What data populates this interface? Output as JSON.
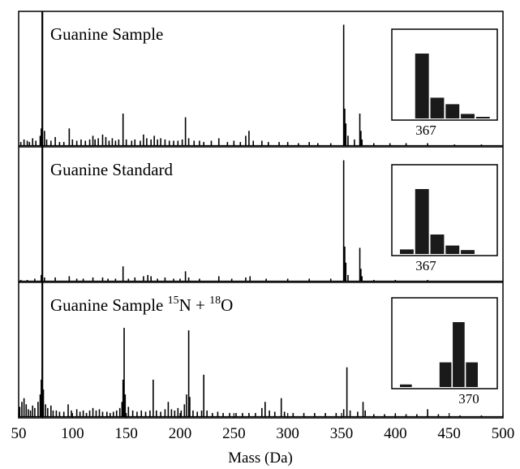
{
  "chart_data": {
    "type": "bar",
    "xlabel": "Mass (Da)",
    "xlim": [
      50,
      500
    ],
    "x_ticks": [
      "50",
      "100",
      "150",
      "200",
      "250",
      "300",
      "350",
      "400",
      "450",
      "500"
    ],
    "colors": {
      "line": "#000000",
      "bars": "#1a1a1a"
    },
    "panels": [
      {
        "title": "Guanine Sample",
        "title_sup": [],
        "peaks": [
          [
            52,
            0.03
          ],
          [
            55,
            0.05
          ],
          [
            58,
            0.04
          ],
          [
            60,
            0.03
          ],
          [
            63,
            0.06
          ],
          [
            66,
            0.04
          ],
          [
            70,
            0.08
          ],
          [
            71,
            0.14
          ],
          [
            72,
            0.22
          ],
          [
            74,
            0.12
          ],
          [
            76,
            0.05
          ],
          [
            80,
            0.04
          ],
          [
            84,
            0.07
          ],
          [
            88,
            0.03
          ],
          [
            92,
            0.03
          ],
          [
            97,
            0.14
          ],
          [
            100,
            0.05
          ],
          [
            104,
            0.04
          ],
          [
            108,
            0.05
          ],
          [
            112,
            0.04
          ],
          [
            116,
            0.05
          ],
          [
            119,
            0.08
          ],
          [
            121,
            0.05
          ],
          [
            124,
            0.06
          ],
          [
            128,
            0.09
          ],
          [
            131,
            0.07
          ],
          [
            134,
            0.04
          ],
          [
            137,
            0.06
          ],
          [
            140,
            0.04
          ],
          [
            143,
            0.05
          ],
          [
            147,
            0.26
          ],
          [
            150,
            0.05
          ],
          [
            155,
            0.04
          ],
          [
            158,
            0.05
          ],
          [
            163,
            0.04
          ],
          [
            166,
            0.09
          ],
          [
            169,
            0.06
          ],
          [
            173,
            0.05
          ],
          [
            176,
            0.08
          ],
          [
            179,
            0.05
          ],
          [
            182,
            0.06
          ],
          [
            186,
            0.05
          ],
          [
            190,
            0.04
          ],
          [
            194,
            0.04
          ],
          [
            198,
            0.04
          ],
          [
            202,
            0.05
          ],
          [
            205,
            0.23
          ],
          [
            208,
            0.06
          ],
          [
            213,
            0.04
          ],
          [
            218,
            0.04
          ],
          [
            222,
            0.03
          ],
          [
            229,
            0.04
          ],
          [
            236,
            0.06
          ],
          [
            244,
            0.03
          ],
          [
            250,
            0.04
          ],
          [
            256,
            0.03
          ],
          [
            261,
            0.08
          ],
          [
            264,
            0.12
          ],
          [
            268,
            0.04
          ],
          [
            276,
            0.04
          ],
          [
            282,
            0.03
          ],
          [
            292,
            0.03
          ],
          [
            300,
            0.03
          ],
          [
            310,
            0.02
          ],
          [
            320,
            0.03
          ],
          [
            328,
            0.02
          ],
          [
            340,
            0.02
          ],
          [
            352,
            0.98
          ],
          [
            353,
            0.3
          ],
          [
            354,
            0.18
          ],
          [
            356,
            0.08
          ],
          [
            362,
            0.05
          ],
          [
            367,
            0.26
          ],
          [
            368,
            0.12
          ],
          [
            369,
            0.05
          ],
          [
            380,
            0.02
          ],
          [
            395,
            0.02
          ],
          [
            410,
            0.02
          ],
          [
            430,
            0.02
          ],
          [
            455,
            0.01
          ],
          [
            480,
            0.01
          ]
        ],
        "inset": {
          "label": "367",
          "bars": [
            {
              "slot": 0,
              "value": 0.0
            },
            {
              "slot": 1,
              "value": 1.0
            },
            {
              "slot": 2,
              "value": 0.32
            },
            {
              "slot": 3,
              "value": 0.22
            },
            {
              "slot": 4,
              "value": 0.07
            },
            {
              "slot": 5,
              "value": 0.02
            }
          ]
        }
      },
      {
        "title": "Guanine Standard",
        "title_sup": [],
        "peaks": [
          [
            52,
            0.01
          ],
          [
            58,
            0.01
          ],
          [
            65,
            0.02
          ],
          [
            71,
            0.05
          ],
          [
            72,
            0.07
          ],
          [
            74,
            0.03
          ],
          [
            84,
            0.03
          ],
          [
            97,
            0.04
          ],
          [
            104,
            0.02
          ],
          [
            110,
            0.02
          ],
          [
            119,
            0.03
          ],
          [
            128,
            0.03
          ],
          [
            133,
            0.02
          ],
          [
            140,
            0.02
          ],
          [
            147,
            0.12
          ],
          [
            152,
            0.02
          ],
          [
            158,
            0.03
          ],
          [
            166,
            0.04
          ],
          [
            170,
            0.05
          ],
          [
            173,
            0.04
          ],
          [
            179,
            0.02
          ],
          [
            186,
            0.03
          ],
          [
            194,
            0.02
          ],
          [
            200,
            0.02
          ],
          [
            205,
            0.08
          ],
          [
            208,
            0.03
          ],
          [
            218,
            0.02
          ],
          [
            236,
            0.04
          ],
          [
            248,
            0.02
          ],
          [
            261,
            0.03
          ],
          [
            265,
            0.04
          ],
          [
            280,
            0.02
          ],
          [
            300,
            0.02
          ],
          [
            320,
            0.02
          ],
          [
            340,
            0.02
          ],
          [
            352,
            0.98
          ],
          [
            353,
            0.28
          ],
          [
            354,
            0.15
          ],
          [
            356,
            0.05
          ],
          [
            367,
            0.27
          ],
          [
            368,
            0.1
          ],
          [
            369,
            0.04
          ],
          [
            380,
            0.01
          ],
          [
            400,
            0.01
          ],
          [
            430,
            0.01
          ]
        ],
        "inset": {
          "label": "367",
          "bars": [
            {
              "slot": 0,
              "value": 0.07
            },
            {
              "slot": 1,
              "value": 1.0
            },
            {
              "slot": 2,
              "value": 0.3
            },
            {
              "slot": 3,
              "value": 0.13
            },
            {
              "slot": 4,
              "value": 0.06
            },
            {
              "slot": 5,
              "value": 0.0
            }
          ]
        }
      },
      {
        "title": "Guanine Sample ",
        "title_sup": [
          "15",
          "N + ",
          "18",
          "O"
        ],
        "peaks": [
          [
            51,
            0.08
          ],
          [
            53,
            0.12
          ],
          [
            55,
            0.15
          ],
          [
            57,
            0.1
          ],
          [
            59,
            0.06
          ],
          [
            61,
            0.05
          ],
          [
            63,
            0.09
          ],
          [
            65,
            0.07
          ],
          [
            68,
            0.12
          ],
          [
            70,
            0.18
          ],
          [
            71,
            0.3
          ],
          [
            72,
            0.4
          ],
          [
            73,
            0.22
          ],
          [
            75,
            0.1
          ],
          [
            77,
            0.07
          ],
          [
            80,
            0.09
          ],
          [
            82,
            0.05
          ],
          [
            85,
            0.05
          ],
          [
            88,
            0.04
          ],
          [
            92,
            0.04
          ],
          [
            96,
            0.1
          ],
          [
            99,
            0.05
          ],
          [
            104,
            0.06
          ],
          [
            107,
            0.04
          ],
          [
            110,
            0.05
          ],
          [
            113,
            0.03
          ],
          [
            116,
            0.05
          ],
          [
            119,
            0.07
          ],
          [
            122,
            0.05
          ],
          [
            125,
            0.06
          ],
          [
            128,
            0.04
          ],
          [
            132,
            0.04
          ],
          [
            135,
            0.03
          ],
          [
            138,
            0.04
          ],
          [
            141,
            0.05
          ],
          [
            144,
            0.07
          ],
          [
            146,
            0.12
          ],
          [
            147,
            0.3
          ],
          [
            148,
            0.72
          ],
          [
            149,
            0.18
          ],
          [
            152,
            0.08
          ],
          [
            156,
            0.05
          ],
          [
            160,
            0.04
          ],
          [
            164,
            0.05
          ],
          [
            168,
            0.04
          ],
          [
            172,
            0.05
          ],
          [
            175,
            0.3
          ],
          [
            178,
            0.05
          ],
          [
            182,
            0.04
          ],
          [
            186,
            0.06
          ],
          [
            189,
            0.12
          ],
          [
            192,
            0.06
          ],
          [
            195,
            0.05
          ],
          [
            198,
            0.07
          ],
          [
            201,
            0.05
          ],
          [
            204,
            0.1
          ],
          [
            206,
            0.18
          ],
          [
            208,
            0.7
          ],
          [
            209,
            0.16
          ],
          [
            212,
            0.05
          ],
          [
            216,
            0.04
          ],
          [
            220,
            0.05
          ],
          [
            222,
            0.34
          ],
          [
            225,
            0.05
          ],
          [
            230,
            0.03
          ],
          [
            235,
            0.04
          ],
          [
            240,
            0.03
          ],
          [
            246,
            0.03
          ],
          [
            252,
            0.03
          ],
          [
            258,
            0.03
          ],
          [
            264,
            0.03
          ],
          [
            270,
            0.03
          ],
          [
            276,
            0.07
          ],
          [
            279,
            0.12
          ],
          [
            283,
            0.05
          ],
          [
            288,
            0.04
          ],
          [
            294,
            0.15
          ],
          [
            297,
            0.04
          ],
          [
            305,
            0.03
          ],
          [
            315,
            0.03
          ],
          [
            325,
            0.03
          ],
          [
            335,
            0.03
          ],
          [
            345,
            0.03
          ],
          [
            352,
            0.06
          ],
          [
            355,
            0.4
          ],
          [
            358,
            0.05
          ],
          [
            365,
            0.04
          ],
          [
            370,
            0.12
          ],
          [
            372,
            0.05
          ],
          [
            380,
            0.02
          ],
          [
            390,
            0.02
          ],
          [
            400,
            0.02
          ],
          [
            410,
            0.02
          ],
          [
            420,
            0.02
          ],
          [
            430,
            0.06
          ],
          [
            440,
            0.02
          ],
          [
            460,
            0.01
          ],
          [
            480,
            0.01
          ]
        ],
        "inset": {
          "label": "370",
          "bars": [
            {
              "slot": 0,
              "value": 0.04
            },
            {
              "slot": 1,
              "value": 0.0
            },
            {
              "slot": 2,
              "value": 0.0
            },
            {
              "slot": 3,
              "value": 0.38
            },
            {
              "slot": 4,
              "value": 1.0
            },
            {
              "slot": 5,
              "value": 0.38
            },
            {
              "slot": 6,
              "value": 0.0
            }
          ]
        }
      }
    ],
    "reference_line_x": 72
  }
}
